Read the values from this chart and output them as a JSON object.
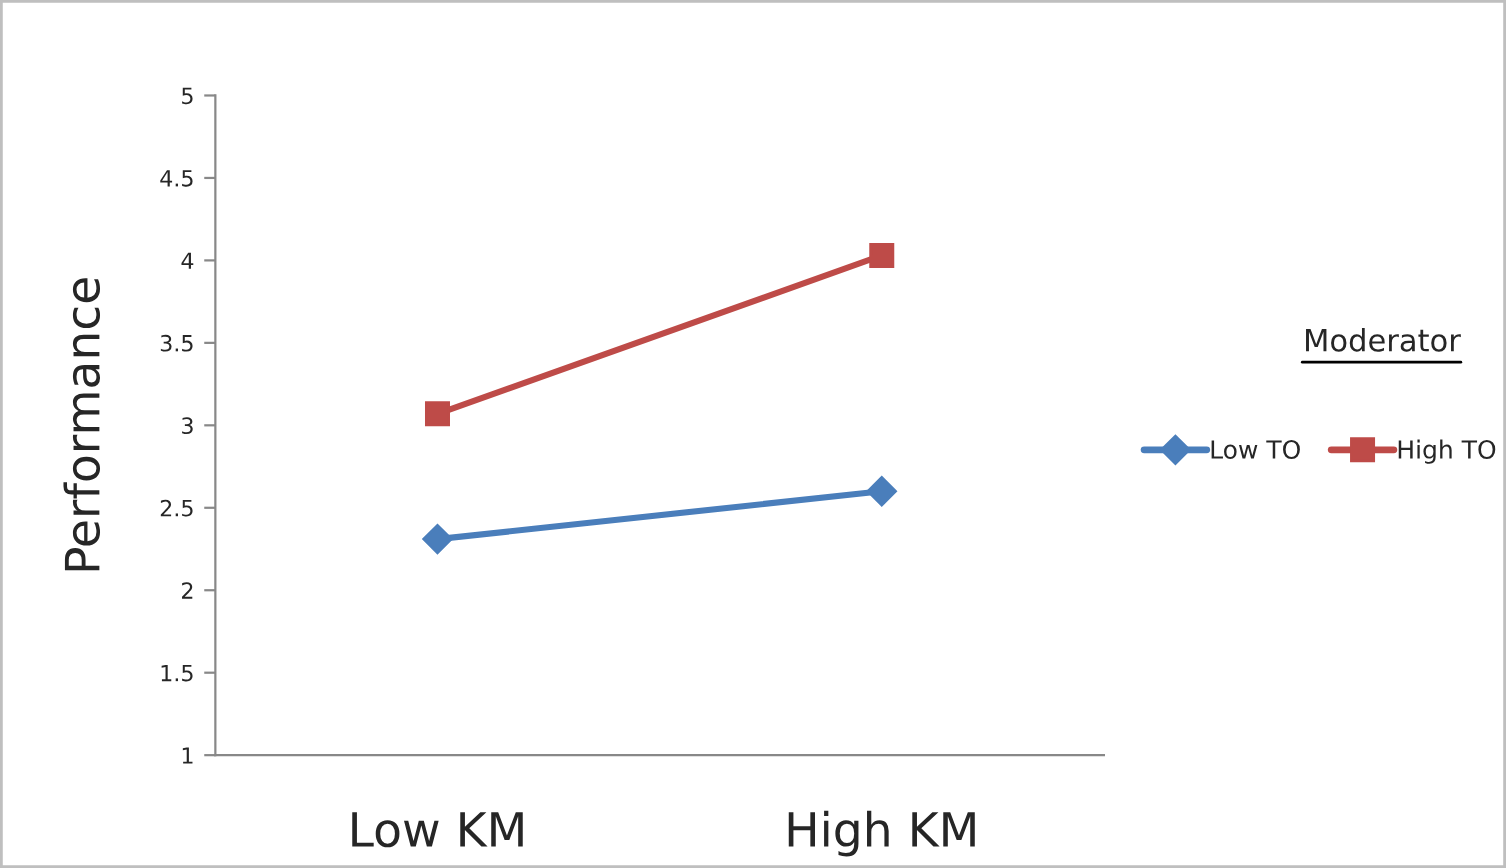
{
  "chart_data": {
    "type": "line",
    "ylabel": "Performance",
    "legend_title": "Moderator",
    "categories": [
      "Low KM",
      "High KM"
    ],
    "series": [
      {
        "name": "Low TO",
        "color": "#4a7ebb",
        "values": [
          2.31,
          2.6
        ],
        "marker": "diamond"
      },
      {
        "name": "High TO",
        "color": "#be4b48",
        "values": [
          3.07,
          4.03
        ],
        "marker": "square"
      }
    ],
    "ylim": [
      1,
      5
    ],
    "yticks": [
      1,
      1.5,
      2,
      2.5,
      3,
      3.5,
      4,
      4.5,
      5
    ],
    "grid": false,
    "legend": "right",
    "line_style": "solid"
  }
}
